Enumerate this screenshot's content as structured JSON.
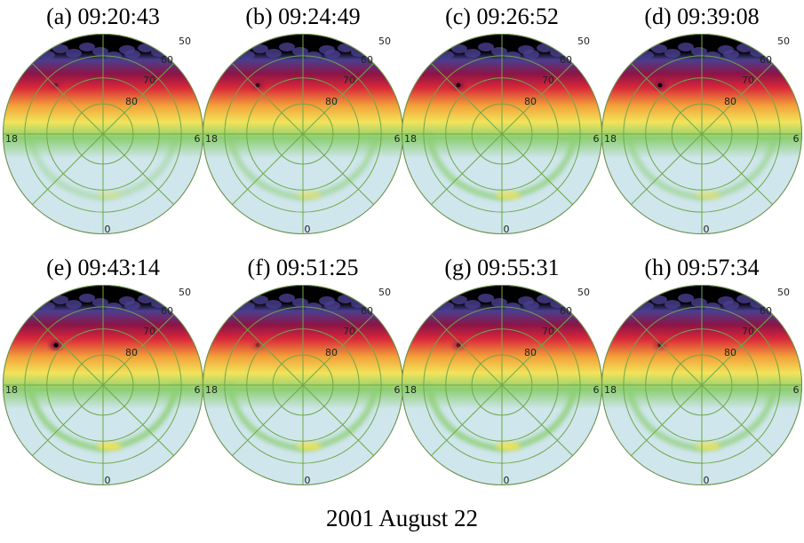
{
  "panels": [
    {
      "label": "(a) 09:20:43",
      "spot": 0.3,
      "arc": 0.1
    },
    {
      "label": "(b) 09:24:49",
      "spot": 0.6,
      "arc": 0.4
    },
    {
      "label": "(c) 09:26:52",
      "spot": 0.85,
      "arc": 0.7
    },
    {
      "label": "(d) 09:39:08",
      "spot": 0.9,
      "arc": 0.4
    },
    {
      "label": "(e) 09:43:14",
      "spot": 1.0,
      "arc": 0.9
    },
    {
      "label": "(f) 09:51:25",
      "spot": 0.3,
      "arc": 0.8
    },
    {
      "label": "(g) 09:55:31",
      "spot": 0.5,
      "arc": 0.9
    },
    {
      "label": "(h) 09:57:34",
      "spot": 0.5,
      "arc": 0.7
    }
  ],
  "grid_labels": {
    "lat": [
      "50",
      "60",
      "70",
      "80"
    ],
    "mlt": [
      "18",
      "6",
      "0"
    ]
  },
  "footer": "2001 August 22",
  "colors": {
    "background_low": "#cfe6ec",
    "green": "#8ccf72",
    "yellow": "#f2e35a",
    "orange": "#f3a23a",
    "red": "#d9283a",
    "crimson": "#8c1447",
    "purple": "#4a3f8f",
    "black": "#000000",
    "grid": "#6fa84a"
  }
}
